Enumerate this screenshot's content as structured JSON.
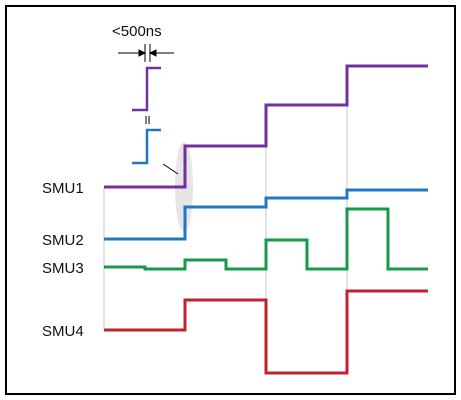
{
  "annotation": {
    "timing_text": "<500ns"
  },
  "labels": {
    "smu1": "SMU1",
    "smu2": "SMU2",
    "smu3": "SMU3",
    "smu4": "SMU4"
  },
  "colors": {
    "smu1": "#7030a0",
    "smu2": "#1f78c1",
    "smu3": "#1a9a48",
    "smu4": "#c0232f",
    "frame": "#000000",
    "guide": "#c8c8c8",
    "highlight": "#e6e6e6"
  }
}
